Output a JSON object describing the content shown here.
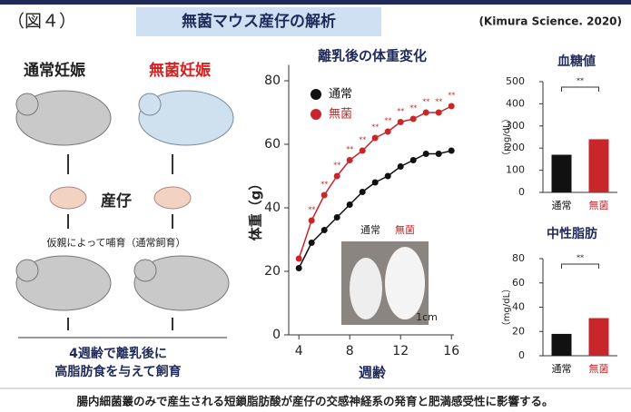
{
  "header": {
    "figure_label": "（図４）",
    "title": "無菌マウス産仔の解析",
    "citation": "(Kimura Science. 2020)"
  },
  "left_panel": {
    "group_normal": "通常妊娠",
    "group_germfree": "無菌妊娠",
    "offspring": "産仔",
    "nursing": "仮親によって哺育（通常飼育）",
    "feeding_line1": "4週齢で離乳後に",
    "feeding_line2": "高脂肪食を与えて飼育"
  },
  "footer": "腸内細菌叢のみで産生される短鎖脂肪酸が産仔の交感神経系の発育と肥満感受性に影響する。",
  "chart_data": [
    {
      "type": "line",
      "title": "離乳後の体重変化",
      "xlabel": "週齢",
      "ylabel": "体重（g）",
      "x": [
        4,
        5,
        6,
        7,
        8,
        9,
        10,
        11,
        12,
        13,
        14,
        15,
        16
      ],
      "series": [
        {
          "name": "通常",
          "color": "#111111",
          "values": [
            21,
            29,
            33,
            37,
            41,
            45,
            48,
            50,
            53,
            55,
            57,
            57,
            58
          ]
        },
        {
          "name": "無菌",
          "color": "#c8262a",
          "values": [
            24,
            36,
            44,
            50,
            55,
            58,
            62,
            64,
            67,
            68,
            70,
            70,
            72
          ]
        }
      ],
      "significance": "**",
      "xlim": [
        3.2,
        16.2
      ],
      "xticks": [
        4,
        8,
        12,
        16
      ],
      "ylim": [
        0,
        85
      ],
      "yticks": [
        0,
        20,
        40,
        60,
        80
      ],
      "inset": {
        "label_normal": "通常",
        "label_germfree": "無菌",
        "scale": "1cm"
      }
    },
    {
      "type": "bar",
      "title": "血糖値",
      "ylabel": "（mg/dL）",
      "categories": [
        "通常",
        "無菌"
      ],
      "values": [
        170,
        240
      ],
      "colors": [
        "#111111",
        "#c8262a"
      ],
      "significance": "**",
      "ylim": [
        0,
        500
      ],
      "yticks": [
        0,
        100,
        200,
        300,
        400,
        500
      ]
    },
    {
      "type": "bar",
      "title": "中性脂肪",
      "ylabel": "（mg/dL）",
      "categories": [
        "通常",
        "無菌"
      ],
      "values": [
        18,
        31
      ],
      "colors": [
        "#111111",
        "#c8262a"
      ],
      "significance": "**",
      "ylim": [
        0,
        80
      ],
      "yticks": [
        0,
        20,
        40,
        60,
        80
      ]
    }
  ]
}
